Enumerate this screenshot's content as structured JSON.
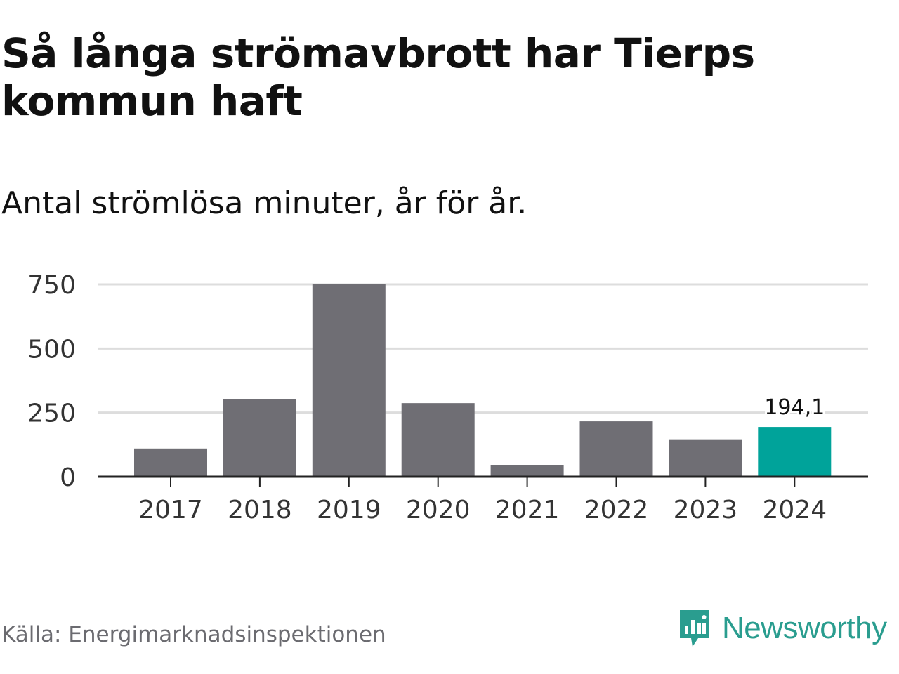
{
  "title": "Så långa strömavbrott har Tierps kommun haft",
  "subtitle": "Antal strömlösa minuter, år för år.",
  "source": "Källa: Energimarknadsinspektionen",
  "brand": {
    "name": "Newsworthy",
    "icon": "newsworthy-logo-icon",
    "color": "#2a9d8f"
  },
  "colors": {
    "bar": "#6f6e74",
    "highlight": "#00a39a",
    "grid": "#dddddd",
    "axis": "#222222"
  },
  "chart_data": {
    "type": "bar",
    "title": "Så långa strömavbrott har Tierps kommun haft",
    "subtitle": "Antal strömlösa minuter, år för år.",
    "xlabel": "",
    "ylabel": "",
    "categories": [
      "2017",
      "2018",
      "2019",
      "2020",
      "2021",
      "2022",
      "2023",
      "2024"
    ],
    "values": [
      110,
      303,
      752,
      287,
      46,
      216,
      146,
      194.1
    ],
    "highlight_index": 7,
    "data_labels": [
      {
        "index": 7,
        "text": "194,1"
      }
    ],
    "yticks": [
      0,
      250,
      500,
      750
    ],
    "ytick_labels": [
      "0",
      "250",
      "500",
      "750"
    ],
    "ylim": [
      0,
      750
    ],
    "grid": true,
    "legend": "none"
  }
}
